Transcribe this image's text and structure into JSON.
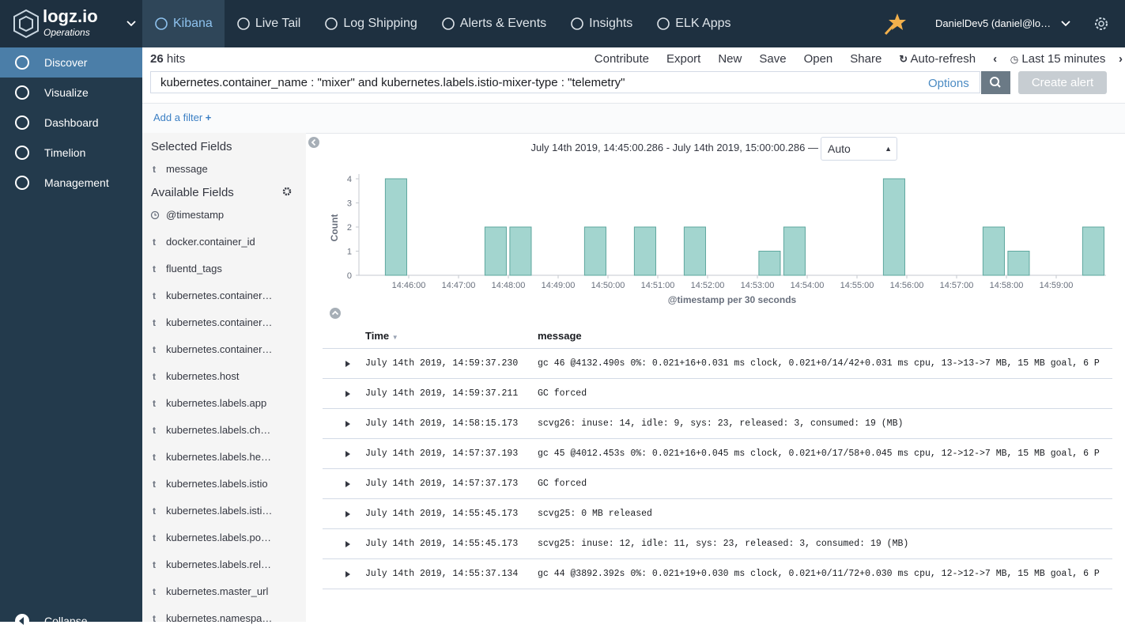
{
  "header": {
    "logo": "logz.io",
    "logo_sub": "Operations",
    "nav": [
      "Kibana",
      "Live Tail",
      "Log Shipping",
      "Alerts & Events",
      "Insights",
      "ELK Apps"
    ],
    "user": "DanielDev5 (daniel@lo…"
  },
  "sidebar": {
    "items": [
      "Discover",
      "Visualize",
      "Dashboard",
      "Timelion",
      "Management"
    ],
    "collapse": "Collapse"
  },
  "toolbar": {
    "hits_count": "26",
    "hits_label": "hits",
    "actions": [
      "Contribute",
      "Export",
      "New",
      "Save",
      "Open",
      "Share"
    ],
    "auto_refresh": "Auto-refresh",
    "time_range": "Last 15 minutes"
  },
  "query": {
    "text": "kubernetes.container_name : \"mixer\" and kubernetes.labels.istio-mixer-type : \"telemetry\"",
    "options": "Options",
    "create_alert": "Create alert"
  },
  "filter": {
    "add": "Add a filter"
  },
  "fields": {
    "selected_title": "Selected Fields",
    "selected": [
      {
        "type": "t",
        "name": "message"
      }
    ],
    "available_title": "Available Fields",
    "available": [
      {
        "type": null,
        "name": "@timestamp"
      },
      {
        "type": "t",
        "name": "docker.container_id"
      },
      {
        "type": "t",
        "name": "fluentd_tags"
      },
      {
        "type": "t",
        "name": "kubernetes.container…"
      },
      {
        "type": "t",
        "name": "kubernetes.container…"
      },
      {
        "type": "t",
        "name": "kubernetes.container…"
      },
      {
        "type": "t",
        "name": "kubernetes.host"
      },
      {
        "type": "t",
        "name": "kubernetes.labels.app"
      },
      {
        "type": "t",
        "name": "kubernetes.labels.ch…"
      },
      {
        "type": "t",
        "name": "kubernetes.labels.he…"
      },
      {
        "type": "t",
        "name": "kubernetes.labels.istio"
      },
      {
        "type": "t",
        "name": "kubernetes.labels.isti…"
      },
      {
        "type": "t",
        "name": "kubernetes.labels.po…"
      },
      {
        "type": "t",
        "name": "kubernetes.labels.rel…"
      },
      {
        "type": "t",
        "name": "kubernetes.master_url"
      },
      {
        "type": "t",
        "name": "kubernetes.namespa…"
      }
    ]
  },
  "chart_data": {
    "type": "histogram",
    "title": "July 14th 2019, 14:45:00.286 - July 14th 2019, 15:00:00.286 —",
    "interval": "Auto",
    "ylabel": "Count",
    "xlabel": "@timestamp per 30 seconds",
    "bins": [
      "14:45:00",
      "14:45:30",
      "14:46:00",
      "14:46:30",
      "14:47:00",
      "14:47:30",
      "14:48:00",
      "14:48:30",
      "14:49:00",
      "14:49:30",
      "14:50:00",
      "14:50:30",
      "14:51:00",
      "14:51:30",
      "14:52:00",
      "14:52:30",
      "14:53:00",
      "14:53:30",
      "14:54:00",
      "14:54:30",
      "14:55:00",
      "14:55:30",
      "14:56:00",
      "14:56:30",
      "14:57:00",
      "14:57:30",
      "14:58:00",
      "14:58:30",
      "14:59:00",
      "14:59:30",
      "15:00:00"
    ],
    "values": [
      0,
      4,
      0,
      0,
      0,
      2,
      2,
      0,
      0,
      2,
      0,
      2,
      0,
      2,
      0,
      0,
      1,
      2,
      0,
      0,
      0,
      4,
      0,
      0,
      0,
      2,
      1,
      0,
      0,
      2
    ],
    "color": "#a3d5cf",
    "xlim": [
      "14:45:00",
      "15:00:00"
    ],
    "xticks": [
      "14:46:00",
      "14:47:00",
      "14:48:00",
      "14:49:00",
      "14:50:00",
      "14:51:00",
      "14:52:00",
      "14:53:00",
      "14:54:00",
      "14:55:00",
      "14:56:00",
      "14:57:00",
      "14:58:00",
      "14:59:00"
    ],
    "ylim": [
      0,
      4
    ],
    "yticks": [
      0,
      1,
      2,
      3,
      4
    ]
  },
  "table": {
    "columns": [
      "Time",
      "message"
    ],
    "rows": [
      [
        "July 14th 2019, 14:59:37.230",
        "gc 46 @4132.490s 0%: 0.021+16+0.031 ms clock, 0.021+0/14/42+0.031 ms cpu, 13->13->7 MB, 15 MB goal, 6 P"
      ],
      [
        "July 14th 2019, 14:59:37.211",
        "GC forced"
      ],
      [
        "July 14th 2019, 14:58:15.173",
        "scvg26: inuse: 14, idle: 9, sys: 23, released: 3, consumed: 19 (MB)"
      ],
      [
        "July 14th 2019, 14:57:37.193",
        "gc 45 @4012.453s 0%: 0.021+16+0.045 ms clock, 0.021+0/17/58+0.045 ms cpu, 12->12->7 MB, 15 MB goal, 6 P"
      ],
      [
        "July 14th 2019, 14:57:37.173",
        "GC forced"
      ],
      [
        "July 14th 2019, 14:55:45.173",
        "scvg25: 0 MB released"
      ],
      [
        "July 14th 2019, 14:55:45.173",
        "scvg25: inuse: 12, idle: 11, sys: 23, released: 3, consumed: 19 (MB)"
      ],
      [
        "July 14th 2019, 14:55:37.134",
        "gc 44 @3892.392s 0%: 0.021+19+0.030 ms clock, 0.021+0/11/72+0.030 ms cpu, 12->12->7 MB, 15 MB goal, 6 P"
      ]
    ]
  }
}
